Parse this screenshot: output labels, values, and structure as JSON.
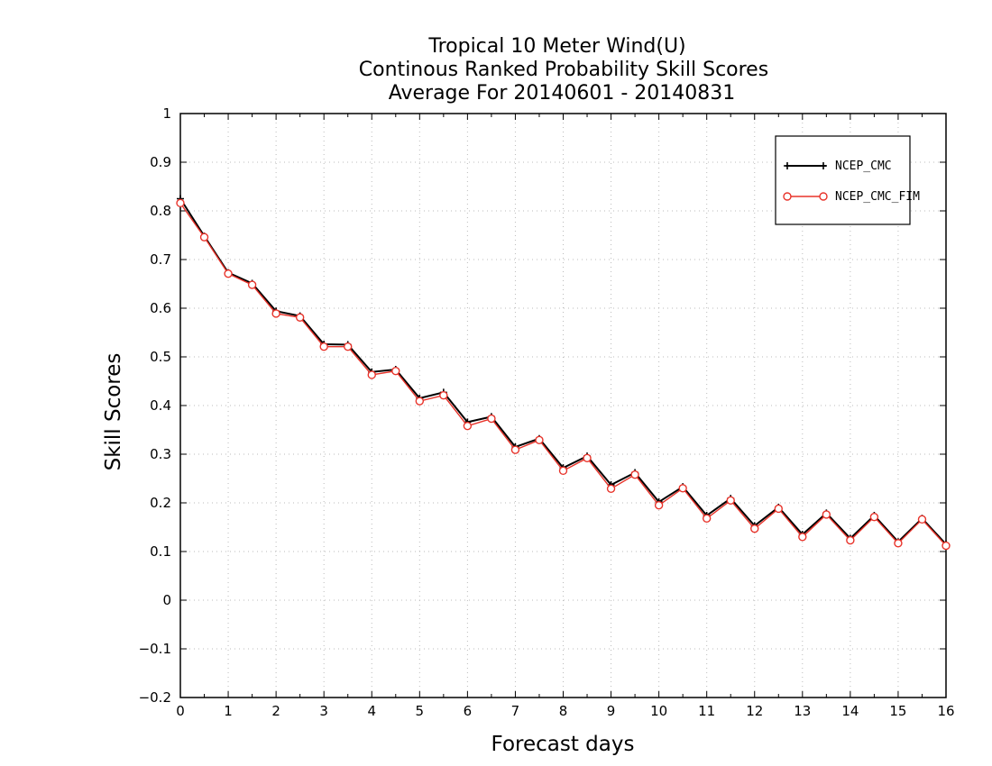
{
  "chart_data": {
    "type": "line",
    "title_lines": [
      "Tropical 10 Meter Wind(U)",
      "Continous Ranked Probability Skill Scores",
      "Average For 20140601 - 20140831"
    ],
    "xlabel": "Forecast days",
    "ylabel": "Skill Scores",
    "xlim": [
      0,
      16
    ],
    "ylim": [
      -0.2,
      1
    ],
    "xticks": [
      "0",
      "1",
      "2",
      "3",
      "4",
      "5",
      "6",
      "7",
      "8",
      "9",
      "10",
      "11",
      "12",
      "13",
      "14",
      "15",
      "16"
    ],
    "yticks": [
      "−0.2",
      "−0.1",
      "0",
      "0.1",
      "0.2",
      "0.3",
      "0.4",
      "0.5",
      "0.6",
      "0.7",
      "0.8",
      "0.9",
      "1"
    ],
    "grid": true,
    "legend_position": "top-right",
    "x": [
      0,
      0.5,
      1,
      1.5,
      2,
      2.5,
      3,
      3.5,
      4,
      4.5,
      5,
      5.5,
      6,
      6.5,
      7,
      7.5,
      8,
      8.5,
      9,
      9.5,
      10,
      10.5,
      11,
      11.5,
      12,
      12.5,
      13,
      13.5,
      14,
      14.5,
      15,
      15.5,
      16
    ],
    "series": [
      {
        "name": "NCEP_CMC",
        "color": "#000000",
        "marker": "plus",
        "values": [
          0.825,
          0.748,
          0.673,
          0.651,
          0.594,
          0.584,
          0.526,
          0.525,
          0.469,
          0.474,
          0.415,
          0.427,
          0.366,
          0.377,
          0.315,
          0.332,
          0.272,
          0.296,
          0.237,
          0.262,
          0.202,
          0.233,
          0.174,
          0.209,
          0.153,
          0.191,
          0.135,
          0.179,
          0.127,
          0.174,
          0.12,
          0.168,
          0.115
        ]
      },
      {
        "name": "NCEP_CMC_FIM",
        "color": "#e8332a",
        "marker": "circle",
        "values": [
          0.816,
          0.746,
          0.671,
          0.648,
          0.589,
          0.581,
          0.521,
          0.521,
          0.463,
          0.471,
          0.409,
          0.421,
          0.358,
          0.373,
          0.309,
          0.329,
          0.266,
          0.292,
          0.229,
          0.258,
          0.195,
          0.23,
          0.168,
          0.205,
          0.147,
          0.188,
          0.13,
          0.176,
          0.123,
          0.171,
          0.117,
          0.166,
          0.112
        ]
      }
    ]
  }
}
